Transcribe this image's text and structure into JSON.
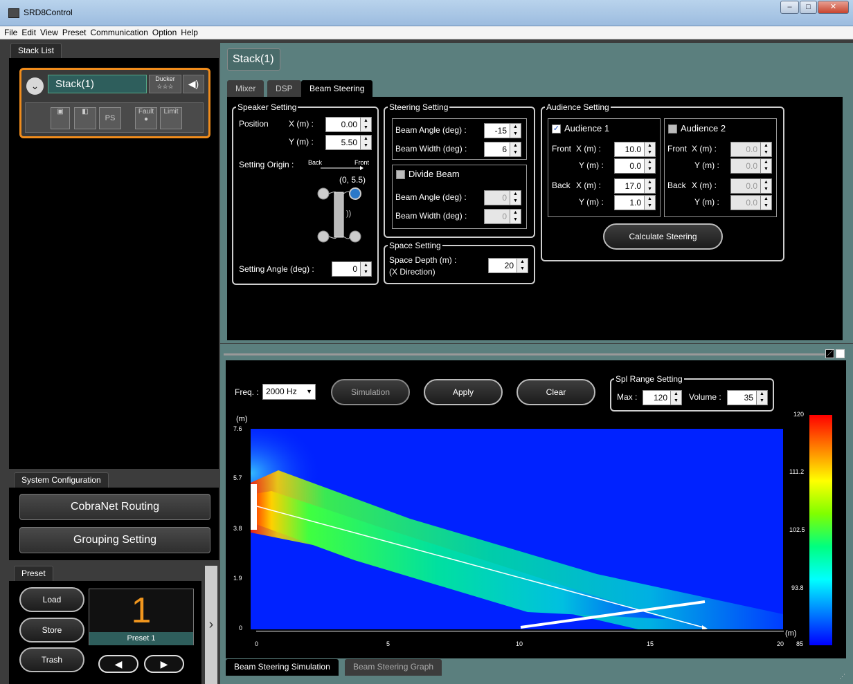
{
  "window": {
    "title": "SRD8Control"
  },
  "menu": [
    "File",
    "Edit",
    "View",
    "Preset",
    "Communication",
    "Option",
    "Help"
  ],
  "stack_list": {
    "tab_label": "Stack List",
    "stack_name": "Stack(1)",
    "ducker_label": "Ducker",
    "ducker_stars": "☆☆☆",
    "fault_label": "Fault",
    "limit_label": "Limit",
    "ps_label": "PS"
  },
  "system_configuration": {
    "tab_label": "System Configuration",
    "cobranet_button": "CobraNet Routing",
    "grouping_button": "Grouping Setting"
  },
  "preset": {
    "tab_label": "Preset",
    "load": "Load",
    "store": "Store",
    "trash": "Trash",
    "number": "1",
    "name": "Preset 1"
  },
  "header": {
    "title": "Stack(1)"
  },
  "tabs": {
    "mixer": "Mixer",
    "dsp": "DSP",
    "beam_steering": "Beam Steering"
  },
  "speaker_setting": {
    "legend": "Speaker Setting",
    "position_label": "Position",
    "x_label": "X (m) :",
    "x_value": "0.00",
    "y_label": "Y (m) :",
    "y_value": "5.50",
    "origin_label": "Setting Origin :",
    "back_label": "Back",
    "front_label": "Front",
    "origin_coord": "(0, 5.5)",
    "angle_label": "Setting Angle (deg) :",
    "angle_value": "0"
  },
  "steering_setting": {
    "legend": "Steering Setting",
    "beam_angle_label": "Beam Angle (deg) :",
    "beam_angle_value": "-15",
    "beam_width_label": "Beam Width (deg) :",
    "beam_width_value": "6",
    "divide_label": "Divide Beam",
    "div_angle_label": "Beam Angle (deg) :",
    "div_angle_value": "0",
    "div_width_label": "Beam Width (deg) :",
    "div_width_value": "0"
  },
  "space_setting": {
    "legend": "Space Setting",
    "depth_label": "Space Depth (m) :",
    "depth_sub": "(X Direction)",
    "depth_value": "20"
  },
  "audience_setting": {
    "legend": "Audience Setting",
    "a1": {
      "label": "Audience 1",
      "checked": true,
      "front_label": "Front",
      "back_label": "Back",
      "x_label": "X (m) :",
      "y_label": "Y (m) :",
      "front_x": "10.0",
      "front_y": "0.0",
      "back_x": "17.0",
      "back_y": "1.0"
    },
    "a2": {
      "label": "Audience 2",
      "checked": false,
      "front_label": "Front",
      "back_label": "Back",
      "x_label": "X (m) :",
      "y_label": "Y (m) :",
      "front_x": "0.0",
      "front_y": "0.0",
      "back_x": "0.0",
      "back_y": "0.0"
    },
    "calculate_button": "Calculate Steering"
  },
  "simulation": {
    "freq_label": "Freq. :",
    "freq_value": "2000 Hz",
    "simulation_button": "Simulation",
    "apply_button": "Apply",
    "clear_button": "Clear",
    "spl_legend": "Spl Range Setting",
    "max_label": "Max :",
    "max_value": "120",
    "volume_label": "Volume :",
    "volume_value": "35",
    "y_unit": "(m)",
    "x_unit": "(m)",
    "y_ticks": [
      "7.6",
      "5.7",
      "3.8",
      "1.9",
      "0"
    ],
    "x_ticks": [
      "0",
      "5",
      "10",
      "15",
      "20"
    ],
    "scale_ticks": [
      "120",
      "111.2",
      "102.5",
      "93.8",
      "85"
    ],
    "tab_sim": "Beam Steering Simulation",
    "tab_graph": "Beam Steering Graph"
  },
  "colors": {
    "accent": "#f08c1c",
    "panel": "#5b7f7e",
    "stack_name_bg": "#2e5e5c"
  }
}
